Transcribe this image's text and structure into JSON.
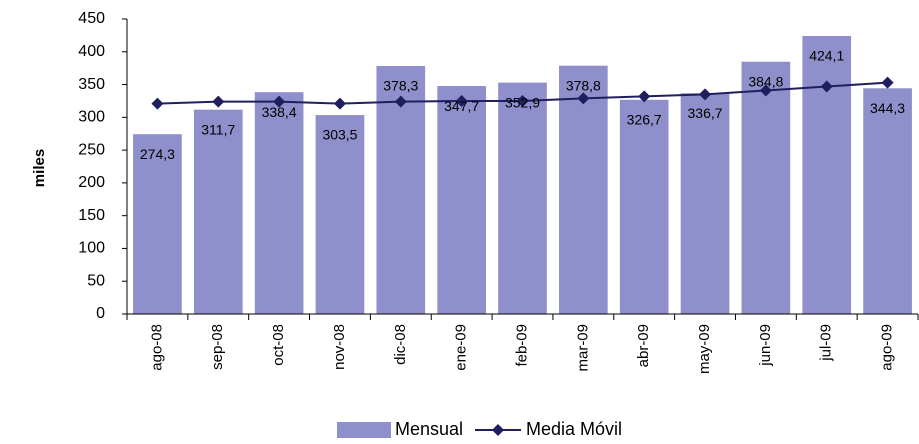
{
  "chart_data": {
    "type": "bar",
    "y_label": "miles",
    "categories": [
      "ago-08",
      "sep-08",
      "oct-08",
      "nov-08",
      "dic-08",
      "ene-09",
      "feb-09",
      "mar-09",
      "abr-09",
      "may-09",
      "jun-09",
      "jul-09",
      "ago-09"
    ],
    "series": [
      {
        "name": "Mensual",
        "type": "bar",
        "color": "#8f8fcc",
        "values": [
          274.3,
          311.7,
          338.4,
          303.5,
          378.3,
          347.7,
          352.9,
          378.8,
          326.7,
          336.7,
          384.8,
          424.1,
          344.3
        ],
        "value_labels": [
          "274,3",
          "311,7",
          "338,4",
          "303,5",
          "378,3",
          "347,7",
          "352,9",
          "378,8",
          "326,7",
          "336,7",
          "384,8",
          "424,1",
          "344,3"
        ]
      },
      {
        "name": "Media Móvil",
        "type": "line",
        "color": "#1f1f5f",
        "values": [
          321,
          324,
          324,
          321,
          324,
          325,
          325,
          329,
          332,
          335,
          341,
          347,
          353
        ]
      }
    ],
    "ylim": [
      0,
      450
    ],
    "yticks": [
      0,
      50,
      100,
      150,
      200,
      250,
      300,
      350,
      400,
      450
    ],
    "grid": false
  }
}
